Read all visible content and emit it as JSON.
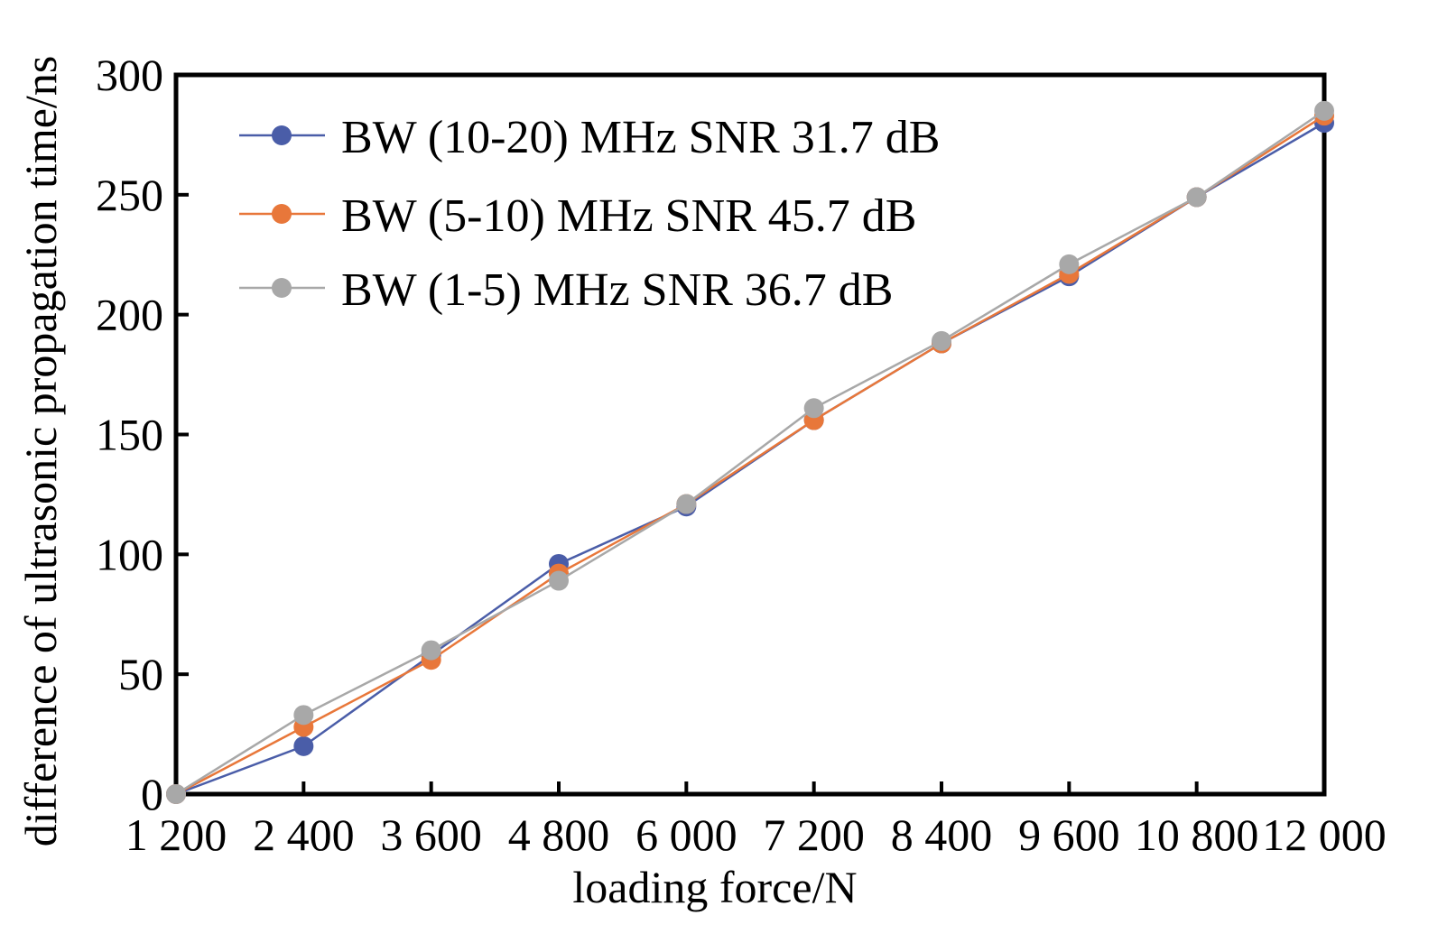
{
  "chart_data": {
    "type": "line",
    "xlabel": "loading force/N",
    "ylabel": "difference of ultrasonic propagation time/ns",
    "x_categories": [
      "1 200",
      "2 400",
      "3 600",
      "4 800",
      "6 000",
      "7 200",
      "8 400",
      "9 600",
      "10 800",
      "12 000"
    ],
    "x_values": [
      1200,
      2400,
      3600,
      4800,
      6000,
      7200,
      8400,
      9600,
      10800,
      12000
    ],
    "xlim": [
      1200,
      12000
    ],
    "ylim": [
      0,
      300
    ],
    "y_ticks": [
      0,
      50,
      100,
      150,
      200,
      250,
      300
    ],
    "grid": false,
    "legend_position": "top-left",
    "series": [
      {
        "name": "BW (10-20) MHz SNR 31.7 dB",
        "color": "#4a5da8",
        "values": [
          0,
          20,
          58,
          96,
          120,
          156,
          188,
          216,
          249,
          280
        ]
      },
      {
        "name": "BW (5-10) MHz SNR 45.7 dB",
        "color": "#e8773a",
        "values": [
          0,
          28,
          56,
          92,
          121,
          156,
          188,
          217,
          249,
          283
        ]
      },
      {
        "name": "BW (1-5) MHz SNR 36.7 dB",
        "color": "#a8a8a8",
        "values": [
          0,
          33,
          60,
          89,
          121,
          161,
          189,
          221,
          249,
          285
        ]
      }
    ]
  }
}
